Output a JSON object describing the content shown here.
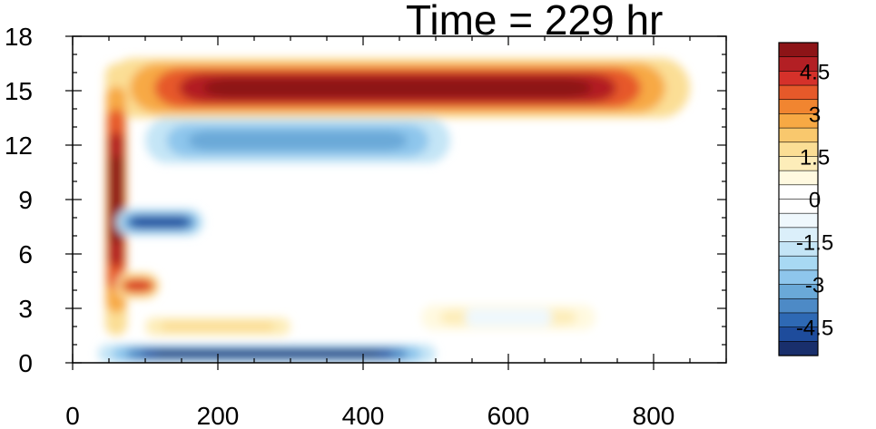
{
  "chart_data": {
    "type": "heatmap",
    "title": "Time = 229 hr",
    "xlabel": "",
    "ylabel": "",
    "xlim": [
      0,
      900
    ],
    "ylim": [
      0,
      18
    ],
    "x_ticks": [
      "0",
      "200",
      "400",
      "600",
      "800"
    ],
    "y_ticks": [
      "0",
      "3",
      "6",
      "9",
      "12",
      "15",
      "18"
    ],
    "colorbar": {
      "range": [
        -5.5,
        5.5
      ],
      "step": 0.5,
      "labels": [
        "4.5",
        "3",
        "1.5",
        "0",
        "-1.5",
        "-3",
        "-4.5"
      ],
      "colors": [
        "#192f6c",
        "#1e4c9c",
        "#2e69b4",
        "#4d8ac6",
        "#6aa9d8",
        "#8ec6ec",
        "#a8d9f3",
        "#c4e5f6",
        "#dbeffa",
        "#eff8fd",
        "#ffffff",
        "#ffffff",
        "#fff9e0",
        "#fdedb9",
        "#fbde95",
        "#f9c86d",
        "#f7a944",
        "#f18530",
        "#e6592a",
        "#d5312a",
        "#b31f24",
        "#8d1417"
      ]
    },
    "features": [
      {
        "name": "upper-positive-band",
        "sign": "positive",
        "x_range": [
          45,
          850
        ],
        "y_range": [
          13.5,
          16.8
        ],
        "peak": 5.5
      },
      {
        "name": "vertical-positive-column",
        "sign": "positive",
        "x_range": [
          45,
          75
        ],
        "y_range": [
          1.5,
          16.5
        ],
        "peak": 5.5
      },
      {
        "name": "mid-negative-band",
        "sign": "negative",
        "x_range": [
          100,
          520
        ],
        "y_range": [
          11.0,
          13.5
        ],
        "peak": -3.5
      },
      {
        "name": "negative-blob-7km",
        "sign": "negative",
        "x_range": [
          60,
          180
        ],
        "y_range": [
          7.0,
          8.5
        ],
        "peak": -5.0
      },
      {
        "name": "positive-blob-4km",
        "sign": "positive",
        "x_range": [
          60,
          120
        ],
        "y_range": [
          3.5,
          5.0
        ],
        "peak": 4.0
      },
      {
        "name": "near-surface-negative",
        "sign": "negative",
        "x_range": [
          35,
          500
        ],
        "y_range": [
          0,
          1.0
        ],
        "peak": -5.5
      },
      {
        "name": "low-positive-band",
        "sign": "positive",
        "x_range": [
          100,
          300
        ],
        "y_range": [
          1.5,
          2.5
        ],
        "peak": 1.5
      },
      {
        "name": "weak-positive-600",
        "sign": "positive",
        "x_range": [
          480,
          720
        ],
        "y_range": [
          1.8,
          3.2
        ],
        "peak": 1.0
      },
      {
        "name": "weak-negative-600",
        "sign": "negative",
        "x_range": [
          540,
          660
        ],
        "y_range": [
          2.0,
          3.0
        ],
        "peak": -1.0
      }
    ]
  }
}
